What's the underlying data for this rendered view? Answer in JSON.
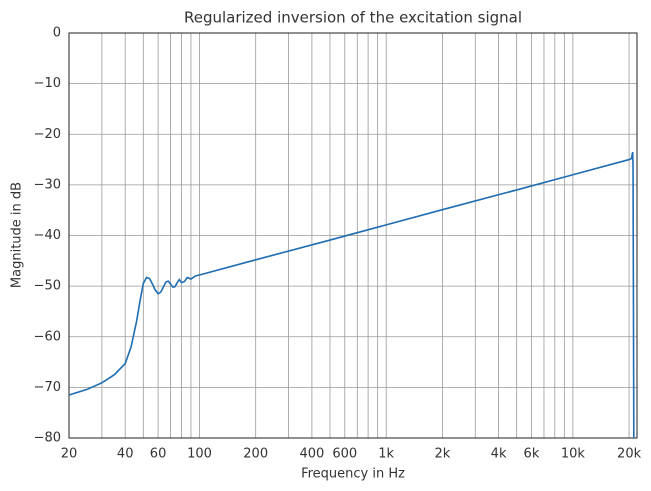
{
  "chart_data": {
    "type": "line",
    "title": "Regularized inversion of the excitation signal",
    "x_label": "Frequency in Hz",
    "y_label": "Magnitude in dB",
    "x_scale": "log",
    "grid": true,
    "xlim": [
      20,
      22050
    ],
    "ylim": [
      -80,
      0
    ],
    "xticks": [
      20,
      40,
      60,
      100,
      200,
      400,
      600,
      {
        "value": 1000,
        "label": "1k"
      },
      {
        "value": 2000,
        "label": "2k"
      },
      {
        "value": 4000,
        "label": "4k"
      },
      {
        "value": 6000,
        "label": "6k"
      },
      {
        "value": 10000,
        "label": "10k"
      },
      {
        "value": 20000,
        "label": "20k"
      }
    ],
    "xminorticks": [
      30,
      50,
      70,
      80,
      90,
      300,
      500,
      700,
      800,
      900,
      3000,
      5000,
      7000,
      8000,
      9000
    ],
    "yticks": [
      0,
      -10,
      -20,
      -30,
      -40,
      -50,
      -60,
      -70,
      -80
    ],
    "series": [
      {
        "color": "#1f6db2",
        "x": [
          20,
          25,
          30,
          35,
          40,
          43,
          46,
          48,
          50,
          52,
          54,
          56,
          58,
          60,
          62,
          64,
          66,
          68,
          70,
          72,
          74,
          76,
          78,
          80,
          83,
          86,
          90,
          95,
          100,
          200,
          500,
          1000,
          2000,
          5000,
          10000,
          20000,
          20600,
          20900,
          21000,
          21200
        ],
        "values": [
          -71.5,
          -70.4,
          -69.1,
          -67.5,
          -65.3,
          -62,
          -57,
          -53,
          -49.5,
          -48.3,
          -48.5,
          -49.6,
          -50.8,
          -51.5,
          -51.2,
          -50.2,
          -49.2,
          -49,
          -49.6,
          -50.2,
          -50.1,
          -49.3,
          -48.7,
          -49.3,
          -49.1,
          -48.3,
          -48.6,
          -48,
          -47.8,
          -44.8,
          -40.9,
          -37.9,
          -34.9,
          -31,
          -28,
          -25,
          -24.8,
          -23.5,
          -26,
          -80
        ]
      }
    ]
  }
}
